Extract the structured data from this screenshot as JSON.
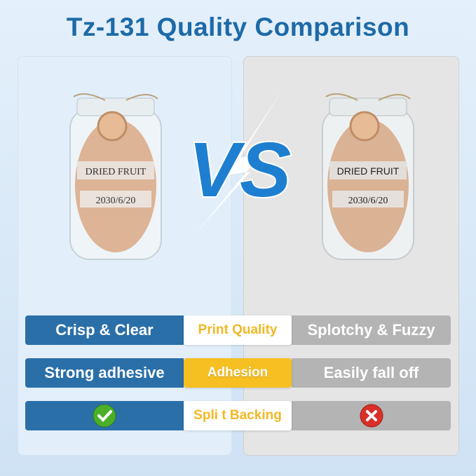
{
  "title": "Tz-131 Quality Comparison",
  "jars": {
    "left": {
      "label_line1": "DRIED FRUIT",
      "label_line2": "2030/6/20"
    },
    "right": {
      "label_line1": "DRIED FRUIT",
      "label_line2": "2030/6/20"
    }
  },
  "vs_text": "VS",
  "rows": [
    {
      "left": "Crisp & Clear",
      "category": "Print Quality",
      "right": "Splotchy & Fuzzy"
    },
    {
      "left": "Strong adhesive",
      "category": "Adhesion",
      "right": "Easily fall off"
    },
    {
      "left_icon": "check-icon",
      "category": "Spli t Backing",
      "right_icon": "cross-icon"
    }
  ],
  "colors": {
    "brand_blue": "#2a6fa8",
    "accent_yellow": "#f6bf22",
    "gray": "#b4b4b4",
    "check_green": "#4caf2a",
    "cross_red": "#d9302a"
  }
}
